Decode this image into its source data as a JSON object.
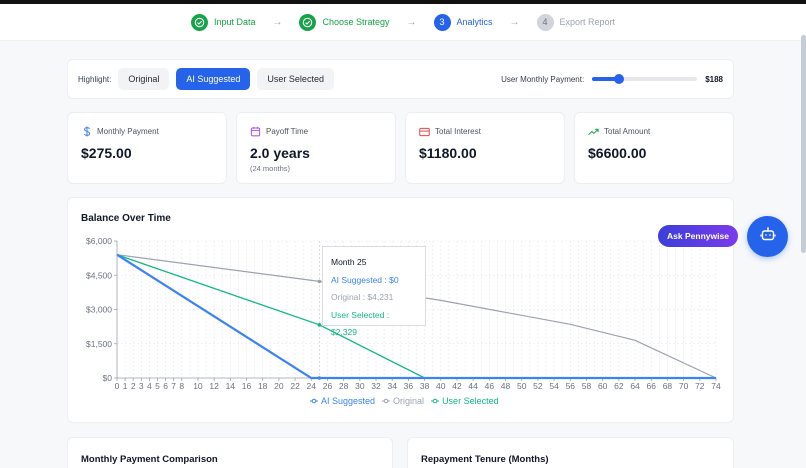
{
  "stepper": {
    "steps": [
      {
        "num": "✓",
        "label": "Input Data",
        "state": "done"
      },
      {
        "num": "✓",
        "label": "Choose Strategy",
        "state": "done"
      },
      {
        "num": "3",
        "label": "Analytics",
        "state": "active"
      },
      {
        "num": "4",
        "label": "Export Report",
        "state": "pending"
      }
    ],
    "arrow": "→"
  },
  "highlight": {
    "label": "Highlight:",
    "options": [
      "Original",
      "AI Suggested",
      "User Selected"
    ],
    "selected": "AI Suggested"
  },
  "slider": {
    "label": "User Monthly Payment:",
    "value": "$188"
  },
  "stats": [
    {
      "icon": "dollar-icon",
      "label": "Monthly Payment",
      "value": "$275.00",
      "sub": ""
    },
    {
      "icon": "calendar-icon",
      "label": "Payoff Time",
      "value": "2.0 years",
      "sub": "(24 months)"
    },
    {
      "icon": "credit-card-icon",
      "label": "Total Interest",
      "value": "$1180.00",
      "sub": ""
    },
    {
      "icon": "trending-up-icon",
      "label": "Total Amount",
      "value": "$6600.00",
      "sub": ""
    }
  ],
  "chart": {
    "title": "Balance Over Time"
  },
  "tooltip": {
    "title": "Month 25",
    "ai": "AI Suggested : $0",
    "original": "Original : $4,231",
    "user": "User Selected : $2,329"
  },
  "assistant": {
    "label": "Ask Pennywise"
  },
  "bottom": {
    "left_title": "Monthly Payment Comparison",
    "right_title": "Repayment Tenure (Months)"
  },
  "colors": {
    "ai": "#3b82f6",
    "original": "#9ca3af",
    "user": "#10b981",
    "accent": "#2563eb",
    "done": "#16a34a"
  },
  "chart_data": {
    "type": "line",
    "title": "Balance Over Time",
    "xlabel": "",
    "ylabel": "",
    "xlim": [
      0,
      74
    ],
    "ylim": [
      0,
      6000
    ],
    "yticks": [
      "$0",
      "$1,500",
      "$3,000",
      "$4,500",
      "$6,000"
    ],
    "xticks": [
      0,
      1,
      2,
      3,
      4,
      5,
      6,
      7,
      8,
      10,
      12,
      14,
      16,
      18,
      20,
      22,
      24,
      26,
      28,
      30,
      32,
      34,
      36,
      38,
      40,
      42,
      44,
      46,
      48,
      50,
      52,
      54,
      56,
      58,
      60,
      62,
      64,
      66,
      68,
      70,
      72,
      74
    ],
    "grid": true,
    "legend_position": "bottom",
    "series": [
      {
        "name": "AI Suggested",
        "color": "#3b82f6",
        "x": [
          0,
          24,
          74
        ],
        "values": [
          5400,
          0,
          0
        ]
      },
      {
        "name": "Original",
        "color": "#9ca3af",
        "x": [
          0,
          25,
          40,
          56,
          64,
          74
        ],
        "values": [
          5400,
          4231,
          3400,
          2350,
          1650,
          0
        ]
      },
      {
        "name": "User Selected",
        "color": "#10b981",
        "x": [
          0,
          25,
          38,
          74
        ],
        "values": [
          5400,
          2329,
          0,
          0
        ]
      }
    ],
    "tooltip": {
      "x": 25,
      "AI Suggested": 0,
      "Original": 4231,
      "User Selected": 2329
    }
  }
}
